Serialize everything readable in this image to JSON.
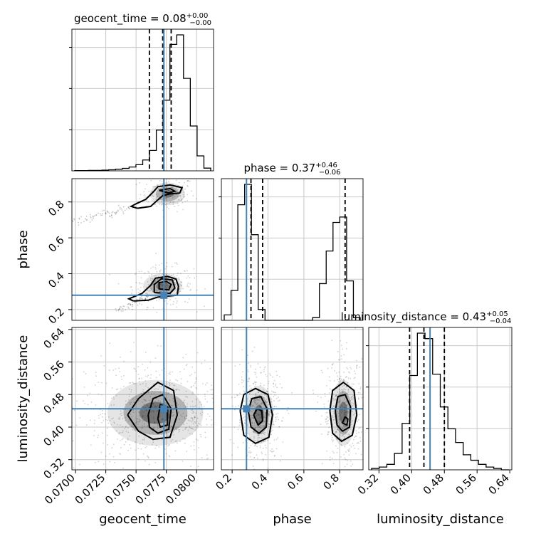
{
  "chart_data": {
    "type": "corner",
    "parameters": [
      {
        "name": "geocent_time",
        "axis_label": "geocent_time",
        "title": {
          "prefix": "geocent_time = 0.08",
          "upper": "+0.00",
          "lower": "−0.00"
        },
        "range": [
          0.0697,
          0.0814
        ],
        "ticks": [
          "0.0700",
          "0.0725",
          "0.0750",
          "0.0775",
          "0.0800"
        ],
        "tick_values": [
          0.07,
          0.0725,
          0.075,
          0.0775,
          0.08
        ],
        "truth": 0.0773,
        "quantiles": [
          0.0761,
          0.0772,
          0.0779
        ],
        "histogram": [
          0.002,
          0.002,
          0.003,
          0.003,
          0.005,
          0.008,
          0.012,
          0.018,
          0.028,
          0.045,
          0.08,
          0.15,
          0.3,
          0.52,
          0.93,
          1.0,
          0.68,
          0.33,
          0.11,
          0.02
        ]
      },
      {
        "name": "phase",
        "axis_label": "phase",
        "title": {
          "prefix": "phase = 0.37",
          "upper": "+0.46",
          "lower": "−0.06"
        },
        "range": [
          0.14,
          0.93
        ],
        "ticks": [
          "0.2",
          "0.4",
          "0.6",
          "0.8"
        ],
        "tick_values": [
          0.2,
          0.4,
          0.6,
          0.8
        ],
        "truth": 0.28,
        "quantiles": [
          0.305,
          0.37,
          0.83
        ],
        "histogram": [
          0.04,
          0.22,
          0.85,
          1.0,
          0.63,
          0.08,
          0.0,
          0.0,
          0.0,
          0.0,
          0.0,
          0.0,
          0.0,
          0.02,
          0.27,
          0.51,
          0.72,
          0.76,
          0.29,
          0.02
        ]
      },
      {
        "name": "luminosity_distance",
        "axis_label": "luminosity_distance",
        "title": {
          "prefix": "luminosity_distance = 0.43",
          "upper": "+0.05",
          "lower": "−0.04"
        },
        "range": [
          0.295,
          0.645
        ],
        "ticks": [
          "0.32",
          "0.40",
          "0.48",
          "0.56",
          "0.64"
        ],
        "tick_values": [
          0.32,
          0.4,
          0.48,
          0.56,
          0.64
        ],
        "truth": 0.445,
        "quantiles": [
          0.395,
          0.43,
          0.48
        ],
        "histogram": [
          0.01,
          0.02,
          0.04,
          0.12,
          0.34,
          0.69,
          1.0,
          0.96,
          0.7,
          0.46,
          0.3,
          0.2,
          0.11,
          0.07,
          0.04,
          0.02,
          0.01,
          0.0
        ]
      }
    ],
    "pairs": [
      {
        "x": "geocent_time",
        "y": "phase",
        "clusters": [
          {
            "cx": 0.0776,
            "cy": 0.845,
            "sx": 0.0008,
            "sy": 0.035,
            "n": 160
          },
          {
            "cx": 0.0772,
            "cy": 0.33,
            "sx": 0.0009,
            "sy": 0.04,
            "n": 260
          }
        ],
        "tails": [
          {
            "x0": 0.0697,
            "y0": 0.69,
            "x1": 0.0748,
            "y1": 0.77,
            "n": 70
          },
          {
            "x0": 0.0735,
            "y0": 0.19,
            "x1": 0.076,
            "y1": 0.28,
            "n": 60
          }
        ],
        "contours": [
          [
            [
              0.0751,
              0.765
            ],
            [
              0.0762,
              0.775
            ],
            [
              0.0766,
              0.8
            ],
            [
              0.0772,
              0.835
            ],
            [
              0.0778,
              0.845
            ],
            [
              0.0786,
              0.85
            ],
            [
              0.0788,
              0.88
            ],
            [
              0.0778,
              0.895
            ],
            [
              0.0768,
              0.885
            ],
            [
              0.0764,
              0.855
            ],
            [
              0.0758,
              0.815
            ],
            [
              0.075,
              0.79
            ],
            [
              0.0746,
              0.775
            ],
            [
              0.0751,
              0.765
            ]
          ],
          [
            [
              0.0769,
              0.865
            ],
            [
              0.0777,
              0.85
            ],
            [
              0.0782,
              0.86
            ],
            [
              0.0778,
              0.875
            ],
            [
              0.0769,
              0.865
            ]
          ],
          [
            [
              0.0748,
              0.248
            ],
            [
              0.076,
              0.252
            ],
            [
              0.0768,
              0.27
            ],
            [
              0.0784,
              0.28
            ],
            [
              0.0785,
              0.33
            ],
            [
              0.0783,
              0.37
            ],
            [
              0.0776,
              0.385
            ],
            [
              0.0766,
              0.375
            ],
            [
              0.0762,
              0.335
            ],
            [
              0.0755,
              0.29
            ],
            [
              0.0744,
              0.26
            ],
            [
              0.0748,
              0.248
            ]
          ],
          [
            [
              0.0765,
              0.295
            ],
            [
              0.0778,
              0.29
            ],
            [
              0.0782,
              0.32
            ],
            [
              0.078,
              0.365
            ],
            [
              0.0771,
              0.372
            ],
            [
              0.0765,
              0.34
            ],
            [
              0.0765,
              0.295
            ]
          ],
          [
            [
              0.0769,
              0.315
            ],
            [
              0.0777,
              0.31
            ],
            [
              0.0779,
              0.34
            ],
            [
              0.0775,
              0.357
            ],
            [
              0.0769,
              0.35
            ],
            [
              0.0769,
              0.315
            ]
          ]
        ]
      },
      {
        "x": "geocent_time",
        "y": "luminosity_distance",
        "clusters": [
          {
            "cx": 0.0766,
            "cy": 0.435,
            "sx": 0.0022,
            "sy": 0.045,
            "n": 700
          }
        ],
        "tails": [],
        "contours": [
          [
            [
              0.0743,
              0.43
            ],
            [
              0.0752,
              0.47
            ],
            [
              0.0768,
              0.51
            ],
            [
              0.0781,
              0.49
            ],
            [
              0.0784,
              0.43
            ],
            [
              0.0778,
              0.375
            ],
            [
              0.0764,
              0.37
            ],
            [
              0.0752,
              0.39
            ],
            [
              0.0743,
              0.43
            ]
          ],
          [
            [
              0.076,
              0.43
            ],
            [
              0.0764,
              0.47
            ],
            [
              0.0772,
              0.48
            ],
            [
              0.0779,
              0.445
            ],
            [
              0.0777,
              0.395
            ],
            [
              0.0768,
              0.385
            ],
            [
              0.0761,
              0.4
            ],
            [
              0.076,
              0.43
            ]
          ],
          [
            [
              0.0768,
              0.42
            ],
            [
              0.077,
              0.455
            ],
            [
              0.0776,
              0.45
            ],
            [
              0.0776,
              0.405
            ],
            [
              0.077,
              0.4
            ],
            [
              0.0768,
              0.42
            ]
          ]
        ]
      },
      {
        "x": "phase",
        "y": "luminosity_distance",
        "clusters": [
          {
            "cx": 0.35,
            "cy": 0.43,
            "sx": 0.045,
            "sy": 0.04,
            "n": 500
          },
          {
            "cx": 0.82,
            "cy": 0.435,
            "sx": 0.04,
            "sy": 0.045,
            "n": 420
          }
        ],
        "tails": [],
        "contours": [
          [
            [
              0.245,
              0.44
            ],
            [
              0.265,
              0.48
            ],
            [
              0.33,
              0.495
            ],
            [
              0.4,
              0.48
            ],
            [
              0.425,
              0.43
            ],
            [
              0.405,
              0.375
            ],
            [
              0.33,
              0.36
            ],
            [
              0.265,
              0.38
            ],
            [
              0.245,
              0.44
            ]
          ],
          [
            [
              0.29,
              0.44
            ],
            [
              0.31,
              0.47
            ],
            [
              0.36,
              0.475
            ],
            [
              0.395,
              0.445
            ],
            [
              0.39,
              0.4
            ],
            [
              0.35,
              0.385
            ],
            [
              0.305,
              0.4
            ],
            [
              0.29,
              0.44
            ]
          ],
          [
            [
              0.32,
              0.43
            ],
            [
              0.34,
              0.445
            ],
            [
              0.365,
              0.44
            ],
            [
              0.37,
              0.415
            ],
            [
              0.345,
              0.405
            ],
            [
              0.32,
              0.43
            ]
          ],
          [
            [
              0.745,
              0.44
            ],
            [
              0.76,
              0.49
            ],
            [
              0.82,
              0.51
            ],
            [
              0.88,
              0.49
            ],
            [
              0.895,
              0.43
            ],
            [
              0.87,
              0.38
            ],
            [
              0.81,
              0.365
            ],
            [
              0.76,
              0.385
            ],
            [
              0.745,
              0.44
            ]
          ],
          [
            [
              0.775,
              0.44
            ],
            [
              0.79,
              0.475
            ],
            [
              0.83,
              0.48
            ],
            [
              0.86,
              0.45
            ],
            [
              0.855,
              0.4
            ],
            [
              0.815,
              0.39
            ],
            [
              0.785,
              0.405
            ],
            [
              0.775,
              0.44
            ]
          ],
          [
            [
              0.815,
              0.41
            ],
            [
              0.83,
              0.425
            ],
            [
              0.845,
              0.42
            ],
            [
              0.84,
              0.405
            ],
            [
              0.815,
              0.41
            ]
          ]
        ]
      }
    ],
    "colors": {
      "truth": "#4682b4",
      "hist": "#000000",
      "grid": "#c8c8c8"
    }
  }
}
